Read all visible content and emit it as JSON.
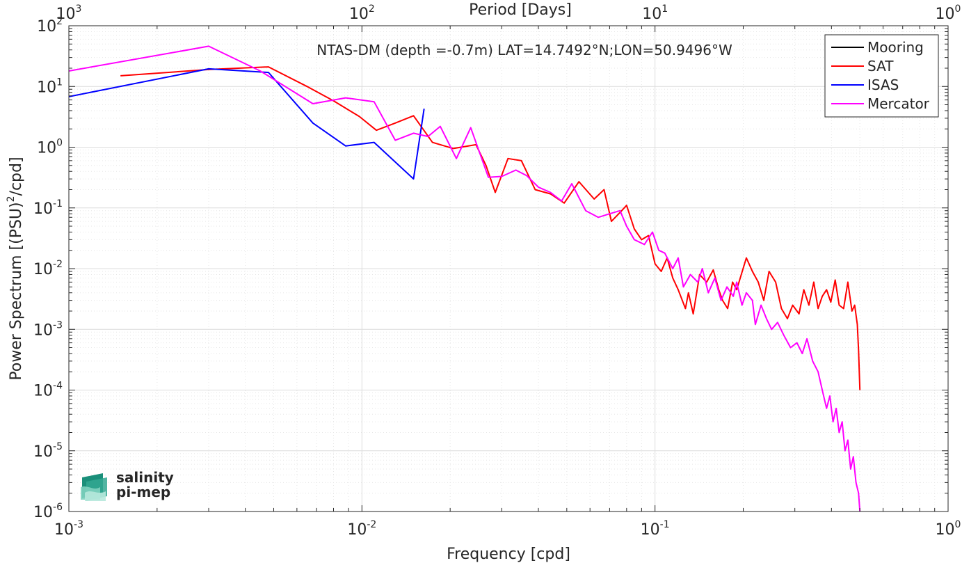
{
  "chart_data": {
    "type": "line",
    "title": "NTAS-DM (depth =-0.7m) LAT=14.7492°N;LON=50.9496°W",
    "xlabel": "Frequency [cpd]",
    "x2label": "Period [Days]",
    "ylabel": "Power Spectrum [(PSU)²/cpd]",
    "ylabel_parts": {
      "pre": "Power Spectrum [(PSU)",
      "sup": "2",
      "post": "/cpd]"
    },
    "xscale": "log",
    "yscale": "log",
    "xlim": [
      0.001,
      1
    ],
    "ylim": [
      1e-06,
      100
    ],
    "grid": true,
    "legend_position": "top-right",
    "x_ticks": [
      {
        "base": "10",
        "exp": "-3"
      },
      {
        "base": "10",
        "exp": "-2"
      },
      {
        "base": "10",
        "exp": "-1"
      },
      {
        "base": "10",
        "exp": "0"
      }
    ],
    "x2_ticks": [
      {
        "base": "10",
        "exp": "3"
      },
      {
        "base": "10",
        "exp": "2"
      },
      {
        "base": "10",
        "exp": "1"
      },
      {
        "base": "10",
        "exp": "0"
      }
    ],
    "y_ticks": [
      {
        "base": "10",
        "exp": "2"
      },
      {
        "base": "10",
        "exp": "1"
      },
      {
        "base": "10",
        "exp": "0"
      },
      {
        "base": "10",
        "exp": "-1"
      },
      {
        "base": "10",
        "exp": "-2"
      },
      {
        "base": "10",
        "exp": "-3"
      },
      {
        "base": "10",
        "exp": "-4"
      },
      {
        "base": "10",
        "exp": "-5"
      },
      {
        "base": "10",
        "exp": "-6"
      }
    ],
    "series": [
      {
        "name": "Mooring",
        "color": "#000000",
        "x": [],
        "y": []
      },
      {
        "name": "SAT",
        "color": "#ff0000",
        "x": [
          0.0015,
          0.003,
          0.0048,
          0.0065,
          0.008,
          0.0098,
          0.0112,
          0.013,
          0.015,
          0.0174,
          0.0205,
          0.0245,
          0.0265,
          0.0285,
          0.0315,
          0.035,
          0.039,
          0.044,
          0.049,
          0.055,
          0.062,
          0.067,
          0.071,
          0.077,
          0.08,
          0.085,
          0.09,
          0.095,
          0.1,
          0.105,
          0.11,
          0.115,
          0.12,
          0.127,
          0.13,
          0.135,
          0.142,
          0.15,
          0.158,
          0.165,
          0.17,
          0.177,
          0.184,
          0.19,
          0.197,
          0.205,
          0.215,
          0.225,
          0.235,
          0.245,
          0.258,
          0.27,
          0.283,
          0.295,
          0.31,
          0.322,
          0.335,
          0.348,
          0.36,
          0.372,
          0.385,
          0.398,
          0.412,
          0.425,
          0.44,
          0.455,
          0.47,
          0.48,
          0.49,
          0.495,
          0.5
        ],
        "y": [
          15,
          19,
          21,
          10,
          5.8,
          3.2,
          1.9,
          2.5,
          3.3,
          1.2,
          0.95,
          1.1,
          0.5,
          0.18,
          0.65,
          0.6,
          0.2,
          0.17,
          0.12,
          0.27,
          0.14,
          0.2,
          0.06,
          0.09,
          0.11,
          0.045,
          0.03,
          0.035,
          0.012,
          0.009,
          0.015,
          0.007,
          0.0045,
          0.0022,
          0.004,
          0.0018,
          0.008,
          0.006,
          0.0095,
          0.0045,
          0.003,
          0.0022,
          0.006,
          0.0045,
          0.008,
          0.015,
          0.009,
          0.006,
          0.003,
          0.009,
          0.006,
          0.0022,
          0.0015,
          0.0025,
          0.0018,
          0.0045,
          0.0025,
          0.006,
          0.0022,
          0.0035,
          0.0045,
          0.0028,
          0.0065,
          0.0025,
          0.0022,
          0.006,
          0.002,
          0.0025,
          0.0012,
          0.00045,
          0.0001
        ]
      },
      {
        "name": "ISAS",
        "color": "#0000ff",
        "x": [
          0.001,
          0.003,
          0.0048,
          0.0068,
          0.0088,
          0.011,
          0.015,
          0.0163
        ],
        "y": [
          6.8,
          19.5,
          17,
          2.5,
          1.05,
          1.2,
          0.3,
          4.3
        ]
      },
      {
        "name": "Mercator",
        "color": "#ff00ff",
        "x": [
          0.001,
          0.003,
          0.0045,
          0.0068,
          0.0088,
          0.011,
          0.013,
          0.015,
          0.0168,
          0.0185,
          0.021,
          0.0235,
          0.027,
          0.03,
          0.0335,
          0.0365,
          0.04,
          0.044,
          0.048,
          0.052,
          0.058,
          0.064,
          0.07,
          0.076,
          0.08,
          0.085,
          0.092,
          0.098,
          0.103,
          0.108,
          0.115,
          0.12,
          0.125,
          0.132,
          0.14,
          0.145,
          0.152,
          0.16,
          0.168,
          0.176,
          0.185,
          0.19,
          0.198,
          0.205,
          0.215,
          0.22,
          0.23,
          0.24,
          0.25,
          0.262,
          0.275,
          0.29,
          0.305,
          0.318,
          0.33,
          0.345,
          0.36,
          0.372,
          0.385,
          0.395,
          0.405,
          0.415,
          0.425,
          0.435,
          0.445,
          0.455,
          0.465,
          0.475,
          0.485,
          0.495,
          0.5
        ],
        "y": [
          18,
          46,
          18,
          5.2,
          6.5,
          5.6,
          1.3,
          1.7,
          1.5,
          2.2,
          0.65,
          2.1,
          0.32,
          0.33,
          0.42,
          0.34,
          0.22,
          0.18,
          0.13,
          0.25,
          0.09,
          0.07,
          0.08,
          0.09,
          0.05,
          0.03,
          0.025,
          0.04,
          0.02,
          0.018,
          0.01,
          0.015,
          0.005,
          0.008,
          0.006,
          0.01,
          0.004,
          0.007,
          0.003,
          0.005,
          0.0035,
          0.006,
          0.0025,
          0.004,
          0.003,
          0.0012,
          0.0025,
          0.0015,
          0.001,
          0.0013,
          0.0008,
          0.0005,
          0.0006,
          0.0004,
          0.0007,
          0.0003,
          0.0002,
          0.0001,
          5e-05,
          8e-05,
          3e-05,
          5e-05,
          2e-05,
          3e-05,
          1e-05,
          1.5e-05,
          5e-06,
          8e-06,
          3e-06,
          2e-06,
          1e-06
        ]
      }
    ]
  },
  "logo": {
    "line1": "salinity",
    "line2": "pi-mep"
  }
}
